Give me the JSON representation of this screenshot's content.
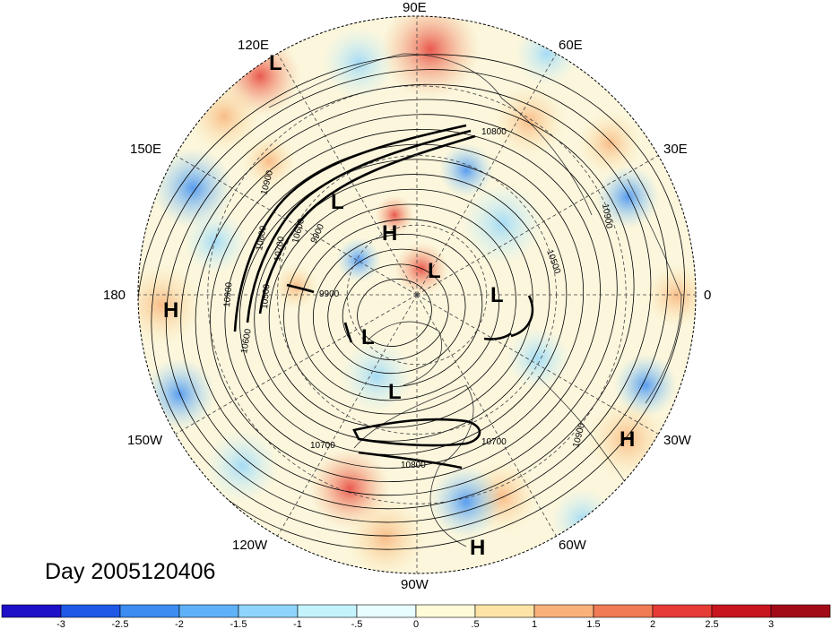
{
  "title": "Day 2005120406",
  "longitude_labels": [
    "90E",
    "60E",
    "30E",
    "0",
    "30W",
    "60W",
    "90W",
    "120W",
    "150W",
    "180",
    "150E",
    "120E"
  ],
  "pressure_centers": [
    "L",
    "L",
    "H",
    "L",
    "L",
    "L",
    "L",
    "H",
    "H",
    "H"
  ],
  "contour_labels": [
    "10800",
    "10900",
    "10800",
    "10700",
    "10600",
    "10500",
    "9900",
    "9900",
    "10500",
    "10600",
    "10900",
    "10900",
    "10700",
    "10700",
    "10800",
    "10900"
  ],
  "colorbar": {
    "tick_labels": [
      "-3",
      "-2.5",
      "-2",
      "-1.5",
      "-1",
      "-.5",
      "0",
      ".5",
      "1",
      "1.5",
      "2",
      "2.5",
      "3"
    ],
    "colors": [
      "#1e0fc8",
      "#1f58e6",
      "#3c8cf2",
      "#5fb2f7",
      "#8fd4fa",
      "#c4f2fd",
      "#e8fdff",
      "#fffbd8",
      "#fde4a6",
      "#f8b27a",
      "#f17b55",
      "#e63c36",
      "#c8141e",
      "#a30a18"
    ]
  }
}
